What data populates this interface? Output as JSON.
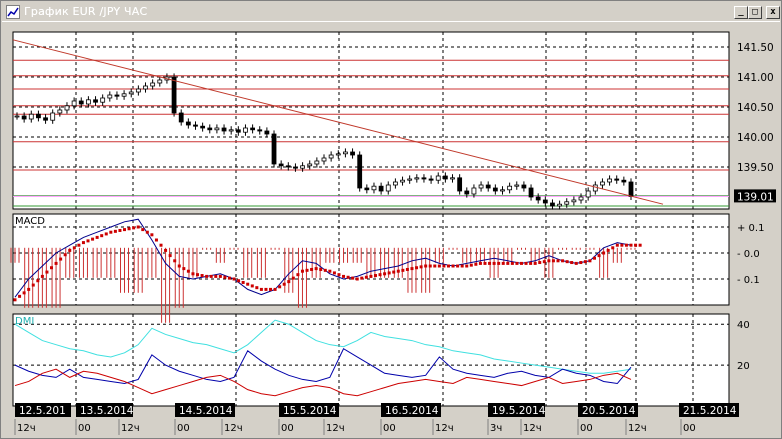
{
  "window": {
    "title": "График EUR /JPY  ЧАС",
    "min_label": "_",
    "max_label": "□",
    "close_label": "x"
  },
  "colors": {
    "chart_bg": "#ffffff",
    "panel_bg": "#d4d0c8",
    "grid": "#000000",
    "trendline": "#c0392b",
    "resistance": "#cc3333",
    "support": "#339933",
    "macd_line": "#00008b",
    "macd_signal": "#cc0000",
    "macd_hist": "#cc3333",
    "dmi_adx": "#40e0e0",
    "dmi_plus": "#0000aa",
    "dmi_minus": "#cc0000",
    "current_price_bg": "#000000"
  },
  "price_panel": {
    "price_labels": [
      "141.50",
      "141.00",
      "140.50",
      "140.00",
      "139.50"
    ],
    "current_price": "139.01"
  },
  "macd_panel": {
    "label": "MACD",
    "scale_labels": [
      "+ 0.1",
      "- 0.0",
      "- 0.1"
    ]
  },
  "dmi_panel": {
    "label": "DMI",
    "scale_labels": [
      "40",
      "20"
    ]
  },
  "time_axis": {
    "date_labels": [
      "12.5.201",
      "13.5.2014",
      "14.5.2014",
      "15.5.2014",
      "16.5.2014",
      "19.5.2014",
      "20.5.2014",
      "21.5.2014"
    ],
    "hour_labels": [
      "12ч",
      "00",
      "12ч",
      "00",
      "12ч",
      "00",
      "12ч",
      "00",
      "12ч",
      "3ч",
      "12ч",
      "00",
      "12ч",
      "00"
    ]
  },
  "chart_data": {
    "type": "candlestick",
    "title": "График EUR /JPY  ЧАС",
    "ylim": [
      138.8,
      141.75
    ],
    "y_ticks": [
      141.5,
      141.0,
      140.5,
      140.0,
      139.5
    ],
    "current_price": 139.01,
    "closes": [
      140.35,
      140.3,
      140.38,
      140.32,
      140.28,
      140.4,
      140.45,
      140.52,
      140.6,
      140.55,
      140.62,
      140.58,
      140.65,
      140.7,
      140.68,
      140.72,
      140.75,
      140.8,
      140.85,
      140.9,
      140.95,
      141.0,
      140.4,
      140.25,
      140.2,
      140.18,
      140.15,
      140.12,
      140.15,
      140.1,
      140.12,
      140.08,
      140.15,
      140.12,
      140.1,
      140.05,
      139.55,
      139.52,
      139.5,
      139.48,
      139.52,
      139.55,
      139.6,
      139.65,
      139.7,
      139.72,
      139.75,
      139.7,
      139.15,
      139.12,
      139.18,
      139.1,
      139.2,
      139.25,
      139.28,
      139.3,
      139.32,
      139.3,
      139.28,
      139.35,
      139.3,
      139.32,
      139.1,
      139.05,
      139.15,
      139.2,
      139.15,
      139.1,
      139.12,
      139.18,
      139.2,
      139.15,
      139.0,
      138.95,
      138.9,
      138.85,
      138.88,
      138.92,
      138.95,
      139.0,
      139.1,
      139.2,
      139.25,
      139.3,
      139.28,
      139.25,
      139.01
    ],
    "resistance_levels": [
      141.28,
      141.02,
      140.8,
      140.52,
      140.38,
      139.92,
      139.45
    ],
    "support_levels": [
      139.02,
      138.85
    ],
    "trendline": [
      [
        0,
        141.62
      ],
      [
        86,
        138.88
      ]
    ],
    "macd_ylim": [
      -0.2,
      0.15
    ],
    "macd_ticks": [
      0.1,
      0.0,
      -0.1
    ],
    "macd_line": [
      -0.17,
      -0.1,
      -0.05,
      0.0,
      0.03,
      0.06,
      0.08,
      0.1,
      0.12,
      0.13,
      0.05,
      -0.04,
      -0.09,
      -0.1,
      -0.09,
      -0.08,
      -0.1,
      -0.14,
      -0.16,
      -0.14,
      -0.08,
      -0.03,
      -0.04,
      -0.08,
      -0.1,
      -0.09,
      -0.07,
      -0.06,
      -0.05,
      -0.03,
      -0.02,
      -0.04,
      -0.05,
      -0.04,
      -0.03,
      -0.02,
      -0.03,
      -0.04,
      -0.03,
      -0.01,
      -0.03,
      -0.04,
      -0.03,
      0.02,
      0.04,
      0.03
    ],
    "macd_signal": [
      -0.18,
      -0.14,
      -0.09,
      -0.04,
      0.01,
      0.04,
      0.06,
      0.08,
      0.09,
      0.1,
      0.07,
      0.01,
      -0.05,
      -0.08,
      -0.09,
      -0.09,
      -0.1,
      -0.12,
      -0.14,
      -0.14,
      -0.11,
      -0.07,
      -0.06,
      -0.07,
      -0.09,
      -0.1,
      -0.09,
      -0.08,
      -0.07,
      -0.06,
      -0.05,
      -0.05,
      -0.05,
      -0.05,
      -0.04,
      -0.04,
      -0.04,
      -0.04,
      -0.04,
      -0.03,
      -0.03,
      -0.04,
      -0.03,
      0.0,
      0.03,
      0.03
    ],
    "dmi_ylim": [
      0,
      45
    ],
    "dmi_ticks": [
      40,
      20
    ],
    "dmi_adx": [
      40,
      36,
      32,
      30,
      28,
      27,
      25,
      24,
      26,
      30,
      38,
      35,
      33,
      31,
      30,
      28,
      26,
      30,
      36,
      42,
      40,
      36,
      32,
      30,
      29,
      32,
      36,
      34,
      33,
      32,
      30,
      29,
      27,
      26,
      25,
      23,
      22,
      21,
      20,
      19,
      18,
      17,
      16,
      16,
      17,
      18
    ],
    "dmi_plus": [
      20,
      17,
      15,
      14,
      18,
      14,
      13,
      12,
      11,
      13,
      25,
      20,
      17,
      15,
      13,
      12,
      14,
      27,
      22,
      18,
      15,
      13,
      12,
      14,
      28,
      24,
      20,
      16,
      15,
      14,
      15,
      24,
      18,
      16,
      15,
      14,
      16,
      17,
      15,
      14,
      18,
      16,
      15,
      12,
      11,
      19
    ],
    "dmi_minus": [
      10,
      12,
      16,
      18,
      14,
      17,
      16,
      14,
      12,
      9,
      6,
      8,
      10,
      12,
      14,
      15,
      12,
      8,
      6,
      5,
      7,
      9,
      10,
      9,
      6,
      5,
      7,
      9,
      11,
      12,
      13,
      12,
      11,
      14,
      13,
      12,
      11,
      10,
      12,
      14,
      11,
      12,
      13,
      15,
      16,
      13
    ]
  }
}
